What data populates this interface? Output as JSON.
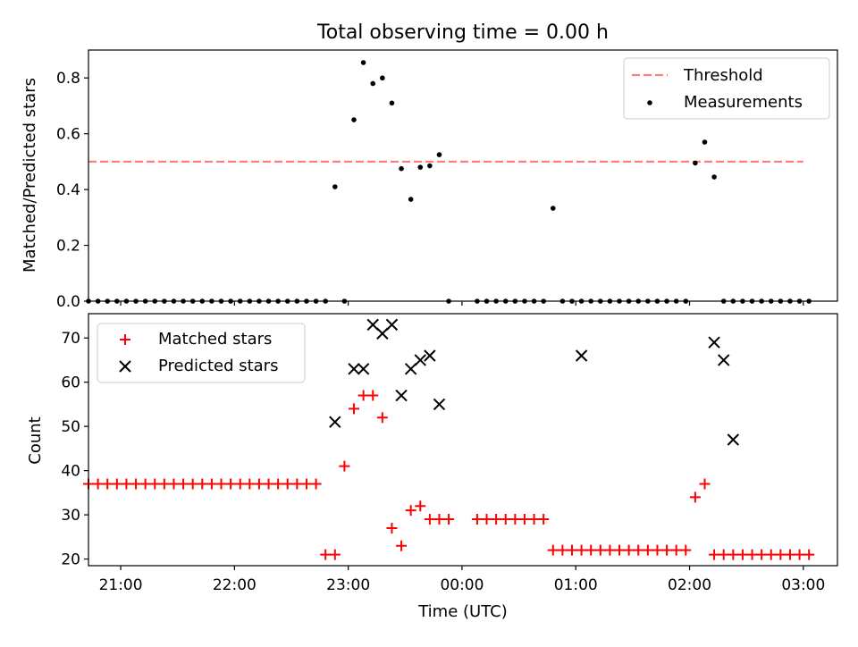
{
  "chart_data": [
    {
      "type": "scatter",
      "title": "Total observing time = 0.00 h",
      "xlabel": "",
      "ylabel": "Matched/Predicted stars",
      "xlim": [
        "20:43",
        "03:18"
      ],
      "ylim": [
        0,
        0.9
      ],
      "xticks": [],
      "yticks": [
        {
          "value": 0.0,
          "label": "0.0"
        },
        {
          "value": 0.2,
          "label": "0.2"
        },
        {
          "value": 0.4,
          "label": "0.4"
        },
        {
          "value": 0.6,
          "label": "0.6"
        },
        {
          "value": 0.8,
          "label": "0.8"
        }
      ],
      "legend": "top-right",
      "series": [
        {
          "name": "Threshold",
          "kind": "line",
          "style": "dashed",
          "color": "#ff7f7f",
          "x": [
            "20:43",
            "03:00"
          ],
          "y": [
            0.5,
            0.5
          ]
        },
        {
          "name": "Measurements",
          "kind": "scatter",
          "marker": "dot",
          "color": "#000000",
          "x": [
            "20:43",
            "20:48",
            "20:53",
            "20:58",
            "21:03",
            "21:08",
            "21:13",
            "21:18",
            "21:23",
            "21:28",
            "21:33",
            "21:38",
            "21:43",
            "21:48",
            "21:53",
            "21:58",
            "22:03",
            "22:08",
            "22:13",
            "22:18",
            "22:23",
            "22:28",
            "22:33",
            "22:38",
            "22:43",
            "22:48",
            "22:53",
            "22:58",
            "23:03",
            "23:08",
            "23:13",
            "23:18",
            "23:23",
            "23:28",
            "23:33",
            "23:38",
            "23:43",
            "23:48",
            "23:53",
            "00:08",
            "00:13",
            "00:18",
            "00:23",
            "00:28",
            "00:33",
            "00:38",
            "00:43",
            "00:48",
            "00:53",
            "00:58",
            "01:03",
            "01:08",
            "01:13",
            "01:18",
            "01:23",
            "01:28",
            "01:33",
            "01:38",
            "01:43",
            "01:48",
            "01:53",
            "01:58",
            "02:03",
            "02:08",
            "02:13",
            "02:18",
            "02:23",
            "02:28",
            "02:33",
            "02:38",
            "02:43",
            "02:48",
            "02:53",
            "02:58",
            "03:03"
          ],
          "y": [
            0,
            0,
            0,
            0,
            0,
            0,
            0,
            0,
            0,
            0,
            0,
            0,
            0,
            0,
            0,
            0,
            0,
            0,
            0,
            0,
            0,
            0,
            0,
            0,
            0,
            0,
            0.41,
            0,
            0.65,
            0.855,
            0.78,
            0.8,
            0.71,
            0.475,
            0.365,
            0.48,
            0.485,
            0.525,
            0,
            0,
            0,
            0,
            0,
            0,
            0,
            0,
            0,
            0.333,
            0,
            0,
            0,
            0,
            0,
            0,
            0,
            0,
            0,
            0,
            0,
            0,
            0,
            0,
            0.495,
            0.57,
            0.445,
            0,
            0,
            0,
            0,
            0,
            0,
            0,
            0,
            0,
            0
          ]
        }
      ]
    },
    {
      "type": "scatter",
      "title": "",
      "xlabel": "Time (UTC)",
      "ylabel": "Count",
      "xlim": [
        "20:43",
        "03:18"
      ],
      "ylim": [
        18.5,
        75.5
      ],
      "xticks": [
        "21:00",
        "22:00",
        "23:00",
        "00:00",
        "01:00",
        "02:00",
        "03:00"
      ],
      "yticks": [
        {
          "value": 20,
          "label": "20"
        },
        {
          "value": 30,
          "label": "30"
        },
        {
          "value": 40,
          "label": "40"
        },
        {
          "value": 50,
          "label": "50"
        },
        {
          "value": 60,
          "label": "60"
        },
        {
          "value": 70,
          "label": "70"
        }
      ],
      "legend": "top-left",
      "series": [
        {
          "name": "Matched stars",
          "kind": "scatter",
          "marker": "plus",
          "color": "#ff0000",
          "x": [
            "20:43",
            "20:48",
            "20:53",
            "20:58",
            "21:03",
            "21:08",
            "21:13",
            "21:18",
            "21:23",
            "21:28",
            "21:33",
            "21:38",
            "21:43",
            "21:48",
            "21:53",
            "21:58",
            "22:03",
            "22:08",
            "22:13",
            "22:18",
            "22:23",
            "22:28",
            "22:33",
            "22:38",
            "22:43",
            "22:48",
            "22:53",
            "22:58",
            "23:03",
            "23:08",
            "23:13",
            "23:18",
            "23:23",
            "23:28",
            "23:33",
            "23:38",
            "23:43",
            "23:48",
            "23:53",
            "00:08",
            "00:13",
            "00:18",
            "00:23",
            "00:28",
            "00:33",
            "00:38",
            "00:43",
            "00:48",
            "00:53",
            "00:58",
            "01:03",
            "01:08",
            "01:13",
            "01:18",
            "01:23",
            "01:28",
            "01:33",
            "01:38",
            "01:43",
            "01:48",
            "01:53",
            "01:58",
            "02:03",
            "02:08",
            "02:13",
            "02:18",
            "02:23",
            "02:28",
            "02:33",
            "02:38",
            "02:43",
            "02:48",
            "02:53",
            "02:58",
            "03:03"
          ],
          "y": [
            37,
            37,
            37,
            37,
            37,
            37,
            37,
            37,
            37,
            37,
            37,
            37,
            37,
            37,
            37,
            37,
            37,
            37,
            37,
            37,
            37,
            37,
            37,
            37,
            37,
            21,
            21,
            41,
            54,
            57,
            57,
            52,
            27,
            23,
            31,
            32,
            29,
            29,
            29,
            29,
            29,
            29,
            29,
            29,
            29,
            29,
            29,
            22,
            22,
            22,
            22,
            22,
            22,
            22,
            22,
            22,
            22,
            22,
            22,
            22,
            22,
            22,
            34,
            37,
            21,
            21,
            21,
            21,
            21,
            21,
            21,
            21,
            21,
            21,
            21
          ]
        },
        {
          "name": "Predicted stars",
          "kind": "scatter",
          "marker": "x",
          "color": "#000000",
          "x": [
            "22:53",
            "23:03",
            "23:08",
            "23:13",
            "23:18",
            "23:23",
            "23:28",
            "23:33",
            "23:38",
            "23:43",
            "23:48",
            "01:03",
            "02:13",
            "02:18",
            "02:23"
          ],
          "y": [
            51,
            63,
            63,
            73,
            71,
            73,
            57,
            63,
            65,
            66,
            55,
            66,
            69,
            65,
            47
          ]
        }
      ]
    }
  ]
}
